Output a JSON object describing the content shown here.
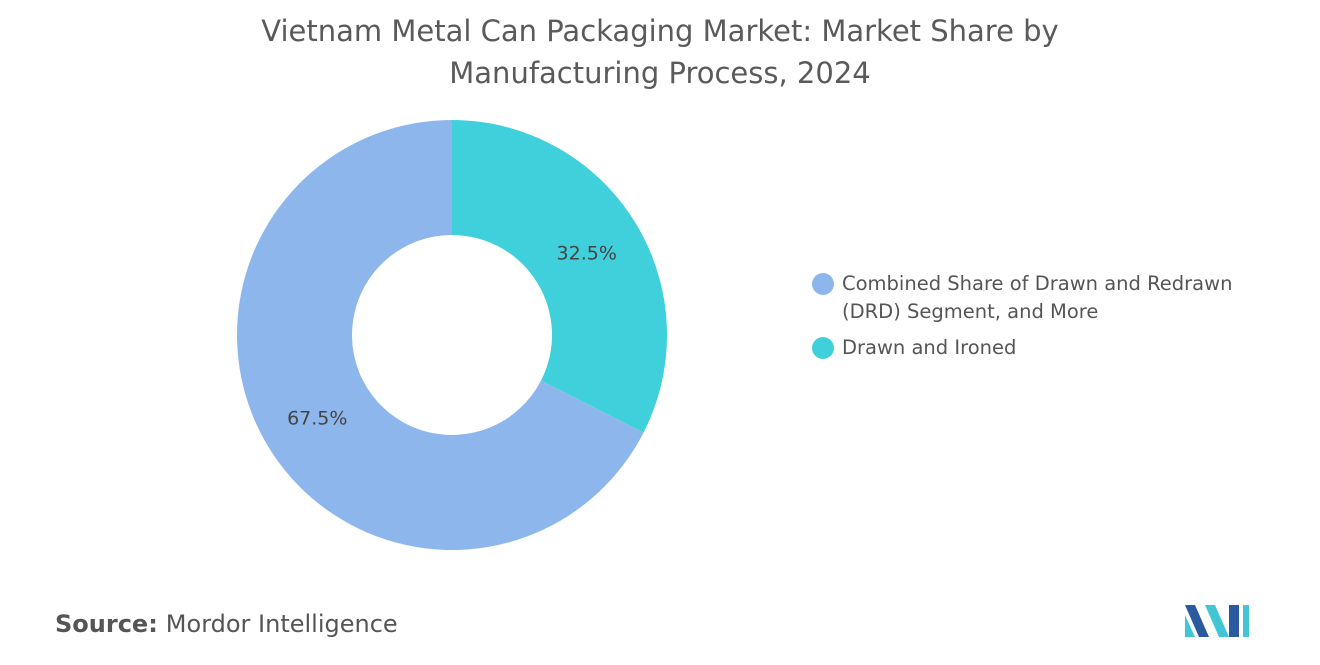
{
  "chart_data": {
    "type": "pie",
    "title": "Vietnam Metal Can Packaging Market: Market Share by Manufacturing Process, 2024",
    "categories": [
      "Combined Share of Drawn and Redrawn (DRD) Segment, and More",
      "Drawn and Ironed"
    ],
    "values": [
      67.5,
      32.5
    ],
    "value_labels": [
      "67.5%",
      "32.5%"
    ],
    "colors": [
      "#8db7ec",
      "#40d0db"
    ],
    "source_label": "Source:",
    "source": "Mordor Intelligence"
  }
}
